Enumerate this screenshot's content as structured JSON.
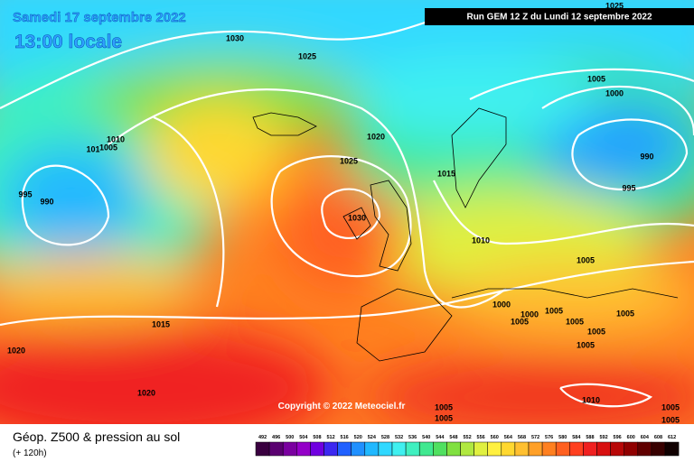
{
  "header": {
    "date": "Samedi 17 septembre 2022",
    "time": "13:00 locale",
    "run": "Run GEM 12 Z du Lundi 12 septembre 2022"
  },
  "copyright": "Copyright © 2022 Meteociel.fr",
  "footer": {
    "title": "Géop. Z500 & pression au sol",
    "subtitle": "(+ 120h)"
  },
  "isobar_labels": [
    "1025",
    "1030",
    "1025",
    "1005",
    "1000",
    "1010",
    "1005",
    "101",
    "1020",
    "1025",
    "1015",
    "990",
    "995",
    "990",
    "995",
    "1030",
    "1010",
    "1005",
    "1000",
    "1000",
    "1005",
    "1005",
    "1005",
    "1005",
    "1005",
    "1005",
    "1015",
    "1020",
    "1020",
    "1010",
    "1005",
    "1005",
    "1005",
    "1005"
  ],
  "colorbar": {
    "labels": [
      492,
      496,
      500,
      504,
      508,
      512,
      516,
      520,
      524,
      528,
      532,
      536,
      540,
      544,
      548,
      552,
      556,
      560,
      564,
      568,
      572,
      576,
      580,
      584,
      588,
      592,
      596,
      600,
      604,
      608,
      612
    ],
    "colors": [
      "#3a0040",
      "#5a0070",
      "#7a00a0",
      "#9400c8",
      "#7000e0",
      "#3c28f0",
      "#2060ff",
      "#2090ff",
      "#20b8ff",
      "#30d8ff",
      "#40f0f0",
      "#40f0c0",
      "#40e890",
      "#50e060",
      "#80e040",
      "#b0e840",
      "#e0f040",
      "#fff040",
      "#ffd830",
      "#ffc030",
      "#ffa028",
      "#ff8020",
      "#ff6020",
      "#ff4020",
      "#f02020",
      "#d81010",
      "#b80808",
      "#900000",
      "#600000",
      "#380000",
      "#100000"
    ]
  }
}
